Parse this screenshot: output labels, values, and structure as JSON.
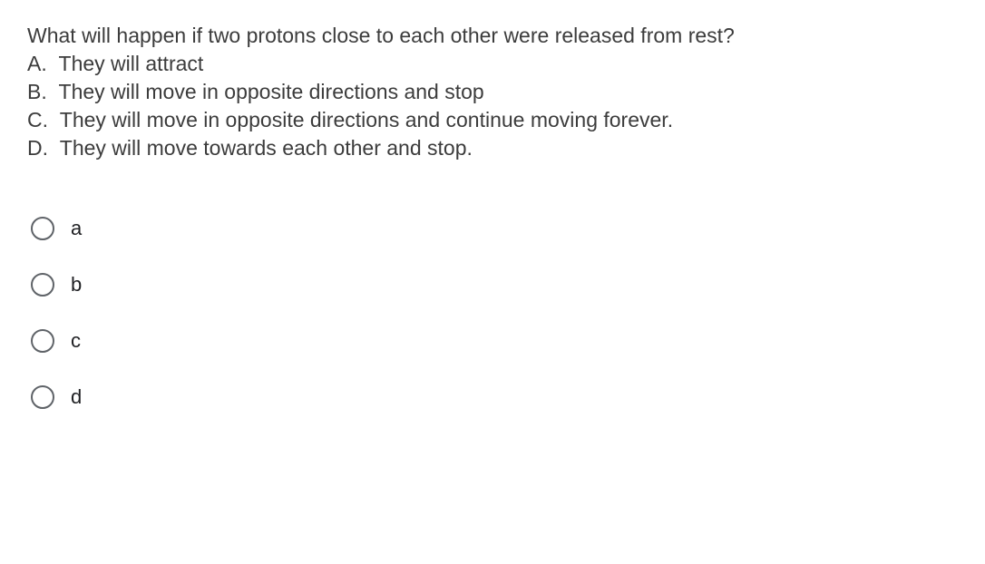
{
  "question": {
    "prompt": "What will happen if two protons close to each other were released from rest?",
    "choices": [
      {
        "letter": "A.",
        "text": "They will attract"
      },
      {
        "letter": "B.",
        "text": "They will move in opposite directions and stop"
      },
      {
        "letter": "C.",
        "text": "They will move in opposite directions and continue moving forever."
      },
      {
        "letter": "D.",
        "text": "They will move towards each other and stop."
      }
    ]
  },
  "radios": [
    {
      "value": "a",
      "label": "a"
    },
    {
      "value": "b",
      "label": "b"
    },
    {
      "value": "c",
      "label": "c"
    },
    {
      "value": "d",
      "label": "d"
    }
  ],
  "colors": {
    "text": "#3c3c3c",
    "radio_border": "#5f6368",
    "radio_label": "#202124",
    "background": "#ffffff"
  },
  "typography": {
    "question_fontsize": 23,
    "radio_label_fontsize": 22,
    "font_family": "Arial"
  }
}
